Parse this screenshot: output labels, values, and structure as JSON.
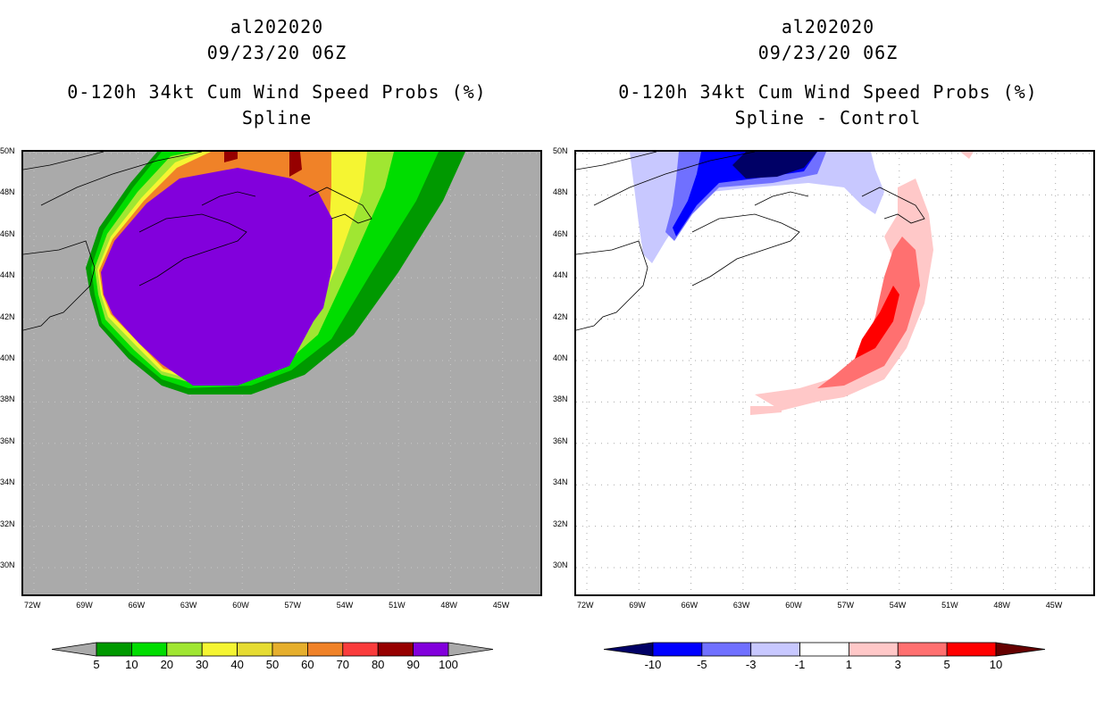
{
  "panels": [
    {
      "id": "left",
      "title_lines": [
        "al202020",
        "09/23/20 06Z",
        "0-120h 34kt Cum Wind Speed Probs (%)",
        "Spline"
      ],
      "background": "#aaaaaa",
      "lon_labels": [
        "72W",
        "69W",
        "66W",
        "63W",
        "60W",
        "57W",
        "54W",
        "51W",
        "48W",
        "45W"
      ],
      "lat_labels": [
        "50N",
        "48N",
        "46N",
        "44N",
        "42N",
        "40N",
        "38N",
        "36N",
        "34N",
        "32N",
        "30N"
      ],
      "colorbar": {
        "labels": [
          "5",
          "10",
          "20",
          "30",
          "40",
          "50",
          "60",
          "70",
          "80",
          "90",
          "100"
        ],
        "colors": [
          "#009900",
          "#00dd00",
          "#a0e632",
          "#f5f532",
          "#e6dc32",
          "#e6af2d",
          "#f08228",
          "#fa3c3c",
          "#960000",
          "#8200dc"
        ],
        "low_end": "#aaaaaa",
        "high_end": "#aaaaaa"
      }
    },
    {
      "id": "right",
      "title_lines": [
        "al202020",
        "09/23/20 06Z",
        "0-120h 34kt Cum Wind Speed Probs (%)",
        "Spline - Control"
      ],
      "background": "#ffffff",
      "lon_labels": [
        "72W",
        "69W",
        "66W",
        "63W",
        "60W",
        "57W",
        "54W",
        "51W",
        "48W",
        "45W"
      ],
      "lat_labels": [
        "50N",
        "48N",
        "46N",
        "44N",
        "42N",
        "40N",
        "38N",
        "36N",
        "34N",
        "32N",
        "30N"
      ],
      "colorbar": {
        "labels": [
          "-10",
          "-5",
          "-3",
          "-1",
          "1",
          "3",
          "5",
          "10"
        ],
        "colors": [
          "#0000ff",
          "#7070ff",
          "#c8c8ff",
          "#ffffff",
          "#ffc8c8",
          "#ff7070",
          "#ff0000"
        ],
        "low_end": "#000066",
        "high_end": "#660000"
      }
    }
  ]
}
